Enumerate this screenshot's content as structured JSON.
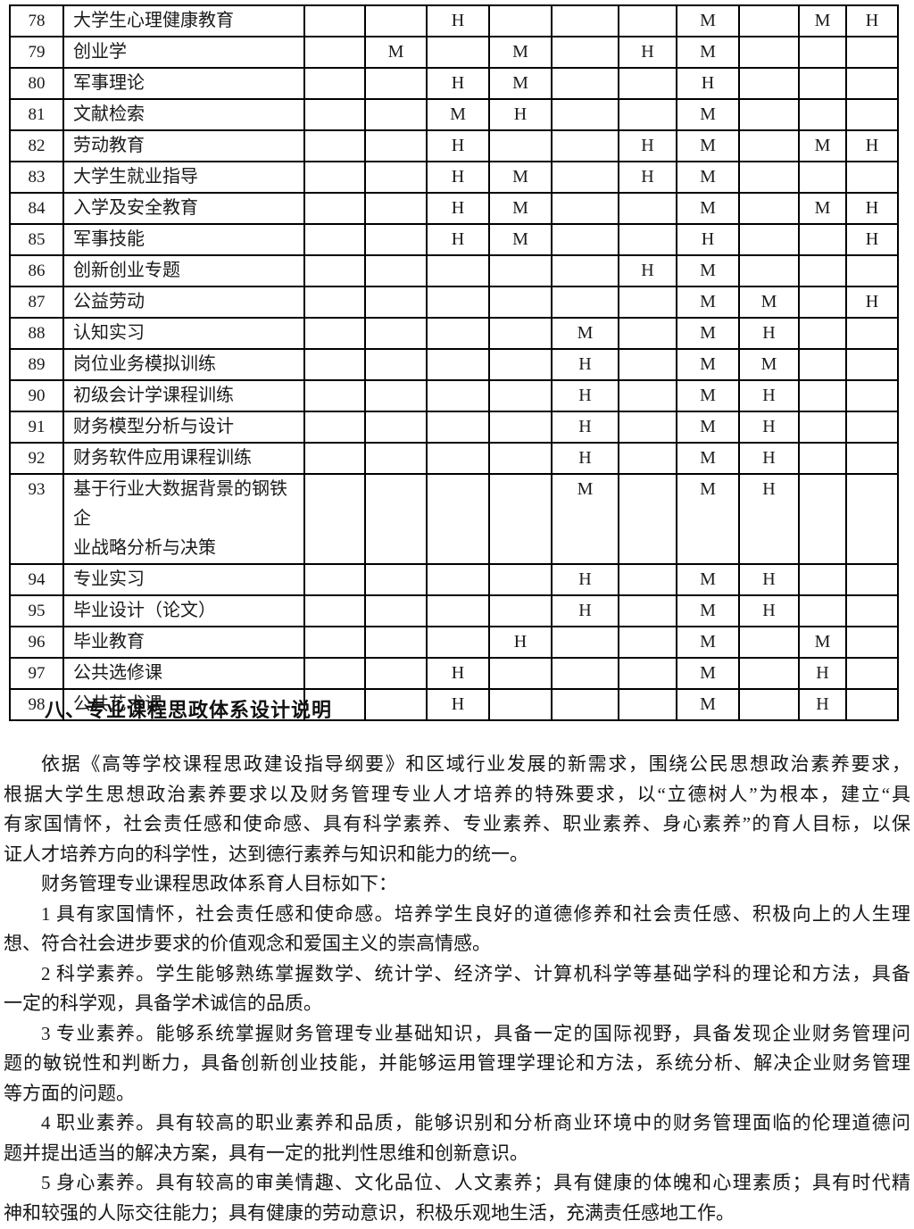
{
  "page": {
    "background_color": "#ffffff",
    "text_color": "#1a1a1a",
    "table_border_color": "#000000"
  },
  "table": {
    "description": "course ideological-political matrix, continuation page, rows 78-98, 10 mark columns (H=high, M=medium)",
    "rows": [
      {
        "num": "78",
        "name": "大学生心理健康教育",
        "cells": [
          "",
          "",
          "H",
          "",
          "",
          "",
          "M",
          "",
          "M",
          "H"
        ]
      },
      {
        "num": "79",
        "name": "创业学",
        "cells": [
          "",
          "M",
          "",
          "M",
          "",
          "H",
          "M",
          "",
          "",
          ""
        ]
      },
      {
        "num": "80",
        "name": "军事理论",
        "cells": [
          "",
          "",
          "H",
          "M",
          "",
          "",
          "H",
          "",
          "",
          ""
        ]
      },
      {
        "num": "81",
        "name": "文献检索",
        "cells": [
          "",
          "",
          "M",
          "H",
          "",
          "",
          "M",
          "",
          "",
          ""
        ]
      },
      {
        "num": "82",
        "name": "劳动教育",
        "cells": [
          "",
          "",
          "H",
          "",
          "",
          "H",
          "M",
          "",
          "M",
          "H"
        ]
      },
      {
        "num": "83",
        "name": "大学生就业指导",
        "cells": [
          "",
          "",
          "H",
          "M",
          "",
          "H",
          "M",
          "",
          "",
          ""
        ]
      },
      {
        "num": "84",
        "name": "入学及安全教育",
        "cells": [
          "",
          "",
          "H",
          "M",
          "",
          "",
          "M",
          "",
          "M",
          "H"
        ]
      },
      {
        "num": "85",
        "name": "军事技能",
        "cells": [
          "",
          "",
          "H",
          "M",
          "",
          "",
          "H",
          "",
          "",
          "H"
        ]
      },
      {
        "num": "86",
        "name": "创新创业专题",
        "cells": [
          "",
          "",
          "",
          "",
          "",
          "H",
          "M",
          "",
          "",
          ""
        ]
      },
      {
        "num": "87",
        "name": "公益劳动",
        "cells": [
          "",
          "",
          "",
          "",
          "",
          "",
          "M",
          "M",
          "",
          "H"
        ]
      },
      {
        "num": "88",
        "name": "认知实习",
        "cells": [
          "",
          "",
          "",
          "",
          "M",
          "",
          "M",
          "H",
          "",
          ""
        ]
      },
      {
        "num": "89",
        "name": "岗位业务模拟训练",
        "cells": [
          "",
          "",
          "",
          "",
          "H",
          "",
          "M",
          "M",
          "",
          ""
        ]
      },
      {
        "num": "90",
        "name": "初级会计学课程训练",
        "cells": [
          "",
          "",
          "",
          "",
          "H",
          "",
          "M",
          "H",
          "",
          ""
        ]
      },
      {
        "num": "91",
        "name": "财务模型分析与设计",
        "cells": [
          "",
          "",
          "",
          "",
          "H",
          "",
          "M",
          "H",
          "",
          ""
        ]
      },
      {
        "num": "92",
        "name": "财务软件应用课程训练",
        "cells": [
          "",
          "",
          "",
          "",
          "H",
          "",
          "M",
          "H",
          "",
          ""
        ]
      },
      {
        "num": "93",
        "name": "基于行业大数据背景的钢铁企\n业战略分析与决策",
        "tall": true,
        "cells": [
          "",
          "",
          "",
          "",
          "M",
          "",
          "M",
          "H",
          "",
          ""
        ]
      },
      {
        "num": "94",
        "name": "专业实习",
        "cells": [
          "",
          "",
          "",
          "",
          "H",
          "",
          "M",
          "H",
          "",
          ""
        ]
      },
      {
        "num": "95",
        "name": "毕业设计（论文）",
        "cells": [
          "",
          "",
          "",
          "",
          "H",
          "",
          "M",
          "H",
          "",
          ""
        ]
      },
      {
        "num": "96",
        "name": "毕业教育",
        "cells": [
          "",
          "",
          "",
          "H",
          "",
          "",
          "M",
          "",
          "M",
          ""
        ]
      },
      {
        "num": "97",
        "name": "公共选修课",
        "cells": [
          "",
          "",
          "H",
          "",
          "",
          "",
          "M",
          "",
          "H",
          ""
        ]
      },
      {
        "num": "98",
        "name": "公共艺术课",
        "cells": [
          "",
          "",
          "H",
          "",
          "",
          "",
          "M",
          "",
          "H",
          ""
        ]
      }
    ]
  },
  "section": {
    "heading": "八、专业课程思政体系设计说明",
    "paragraphs": [
      {
        "lines": [
          {
            "text": "依据《高等学校课程思政建设指导纲要》和区域行业发展的新需求，围绕公民思想政治素养要求，",
            "indent": true,
            "justify": true
          },
          {
            "text": "根据大学生思想政治素养要求以及财务管理专业人才培养的特殊要求，以“立德树人”为根本，建立“具",
            "indent": false,
            "justify": true
          },
          {
            "text": "有家国情怀，社会责任感和使命感、具有科学素养、专业素养、职业素养、身心素养”的育人目标，以保",
            "indent": false,
            "justify": true
          },
          {
            "text": "证人才培养方向的科学性，达到德行素养与知识和能力的统一。",
            "indent": false,
            "justify": false
          }
        ]
      },
      {
        "lines": [
          {
            "text": "财务管理专业课程思政体系育人目标如下：",
            "indent": true,
            "justify": false
          }
        ]
      },
      {
        "lines": [
          {
            "text": "1 具有家国情怀，社会责任感和使命感。培养学生良好的道德修养和社会责任感、积极向上的人生理",
            "indent": true,
            "justify": true
          },
          {
            "text": "想、符合社会进步要求的价值观念和爱国主义的崇高情感。",
            "indent": false,
            "justify": false
          }
        ]
      },
      {
        "lines": [
          {
            "text": "2 科学素养。学生能够熟练掌握数学、统计学、经济学、计算机科学等基础学科的理论和方法，具备",
            "indent": true,
            "justify": true
          },
          {
            "text": "一定的科学观，具备学术诚信的品质。",
            "indent": false,
            "justify": false
          }
        ]
      },
      {
        "lines": [
          {
            "text": "3 专业素养。能够系统掌握财务管理专业基础知识，具备一定的国际视野，具备发现企业财务管理问",
            "indent": true,
            "justify": true
          },
          {
            "text": "题的敏锐性和判断力，具备创新创业技能，并能够运用管理学理论和方法，系统分析、解决企业财务管理",
            "indent": false,
            "justify": true
          },
          {
            "text": "等方面的问题。",
            "indent": false,
            "justify": false
          }
        ]
      },
      {
        "lines": [
          {
            "text": "4 职业素养。具有较高的职业素养和品质，能够识别和分析商业环境中的财务管理面临的伦理道德问",
            "indent": true,
            "justify": true
          },
          {
            "text": "题并提出适当的解决方案，具有一定的批判性思维和创新意识。",
            "indent": false,
            "justify": false
          }
        ]
      },
      {
        "lines": [
          {
            "text": "5 身心素养。具有较高的审美情趣、文化品位、人文素养；具有健康的体魄和心理素质；具有时代精",
            "indent": true,
            "justify": true
          },
          {
            "text": "神和较强的人际交往能力；具有健康的劳动意识，积极乐观地生活，充满责任感地工作。",
            "indent": false,
            "justify": false
          }
        ]
      }
    ]
  }
}
